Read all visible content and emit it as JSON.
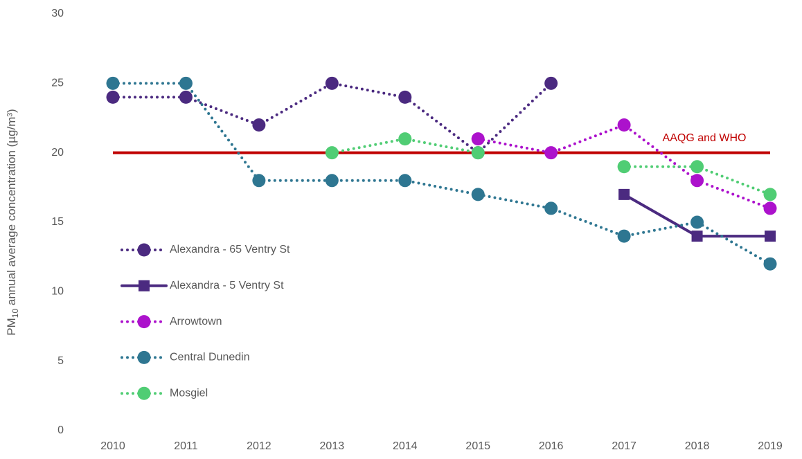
{
  "chart_data": {
    "type": "line",
    "y_label": {
      "prefix": "PM",
      "subscript": "10",
      "suffix": " annual average concentration (µg/m³)"
    },
    "categories": [
      "2010",
      "2011",
      "2012",
      "2013",
      "2014",
      "2015",
      "2016",
      "2017",
      "2018",
      "2019"
    ],
    "ylim": [
      0,
      30
    ],
    "yticks": [
      0,
      5,
      10,
      15,
      20,
      25,
      30
    ],
    "grid": false,
    "legend": "left",
    "reference_line": {
      "value": 20,
      "label": "AAQG and WHO",
      "color": "#c00000"
    },
    "series": [
      {
        "name": "Alexandra - 65 Ventry St",
        "color": "#4b2a80",
        "marker": "circle",
        "dashed": true,
        "values": [
          24,
          24,
          22,
          25,
          24,
          20,
          25,
          null,
          null,
          null
        ]
      },
      {
        "name": "Alexandra - 5 Ventry St",
        "color": "#4b2a80",
        "marker": "square",
        "dashed": false,
        "values": [
          null,
          null,
          null,
          null,
          null,
          null,
          null,
          17,
          14,
          14
        ]
      },
      {
        "name": "Arrowtown",
        "color": "#ac12cc",
        "marker": "circle",
        "dashed": true,
        "values": [
          null,
          null,
          null,
          null,
          null,
          21,
          20,
          22,
          18,
          16
        ]
      },
      {
        "name": "Central Dunedin",
        "color": "#2e7691",
        "marker": "circle",
        "dashed": true,
        "values": [
          25,
          25,
          18,
          18,
          18,
          17,
          16,
          14,
          15,
          12
        ]
      },
      {
        "name": "Mosgiel",
        "color": "#50cd74",
        "marker": "circle",
        "dashed": true,
        "values": [
          null,
          null,
          null,
          20,
          21,
          20,
          null,
          19,
          19,
          17
        ]
      }
    ]
  }
}
